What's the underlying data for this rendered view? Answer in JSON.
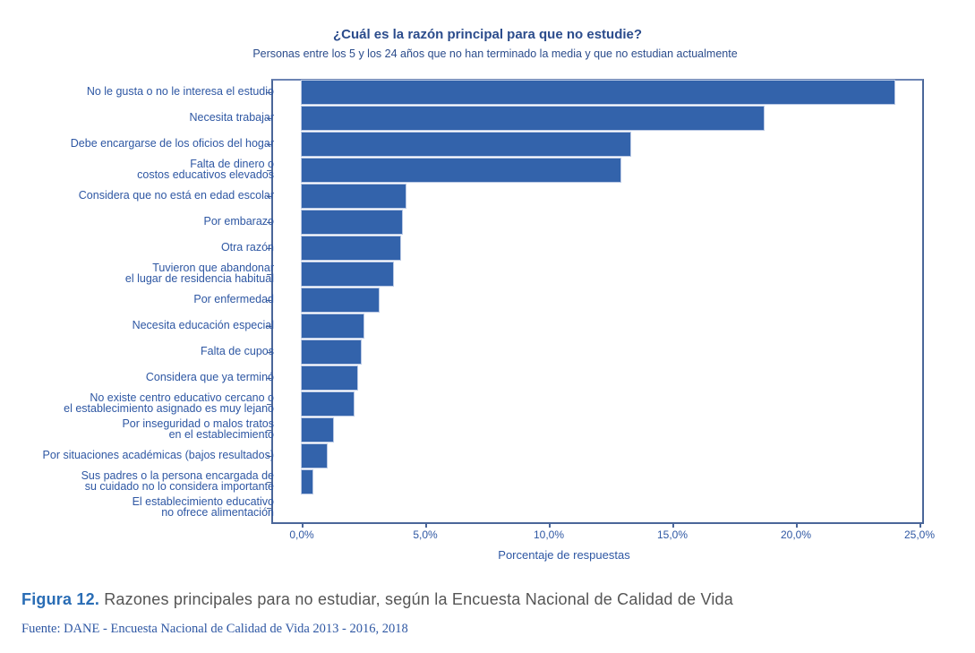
{
  "chart_data": {
    "type": "bar",
    "orientation": "horizontal",
    "title": "¿Cuál es la razón principal para que no estudie?",
    "subtitle": "Personas entre los 5 y los 24 años que no han terminado la media y que no estudian actualmente",
    "xlabel": "Porcentaje de respuestas",
    "ylabel": "",
    "xlim": [
      0,
      25
    ],
    "xticks": [
      "0,0%",
      "5,0%",
      "10,0%",
      "15,0%",
      "20,0%",
      "25,0%"
    ],
    "grid": false,
    "legend": null,
    "bar_color": "#3363ab",
    "categories": [
      "No le gusta o no le interesa el estudio",
      "Necesita trabajar",
      "Debe encargarse de los oficios del hogar",
      "Falta de dinero o\ncostos educativos elevados",
      "Considera que no está en edad escolar",
      "Por embarazo",
      "Otra razón",
      "Tuvieron que abandonar\nel lugar de residencia habitual",
      "Por enfermedad",
      "Necesita educación especial",
      "Falta de cupos",
      "Considera que ya terminó",
      "No existe centro educativo cercano o\nel establecimiento asignado es muy lejano",
      "Por inseguridad o malos tratos\nen el establecimiento",
      "Por situaciones académicas (bajos resultados)",
      "Sus padres o la persona encargada de\nsu cuidado no lo considera importante",
      "El establecimiento educativo\nno ofrece alimentación"
    ],
    "values": [
      24.0,
      18.7,
      13.3,
      12.9,
      4.2,
      4.05,
      4.0,
      3.7,
      3.1,
      2.5,
      2.4,
      2.25,
      2.1,
      1.25,
      1.0,
      0.45,
      0.0
    ]
  },
  "caption": {
    "figure_label": "Figura 12.",
    "text": " Razones principales para no estudiar, según la Encuesta Nacional de Calidad de Vida"
  },
  "source": "Fuente:  DANE - Encuesta Nacional de Calidad de Vida 2013 - 2016, 2018",
  "colors": {
    "bar": "#3363ab",
    "text": "#2e57a3",
    "title": "#2b4c8c",
    "caption_label": "#2a6db5",
    "caption_text": "#555555"
  }
}
